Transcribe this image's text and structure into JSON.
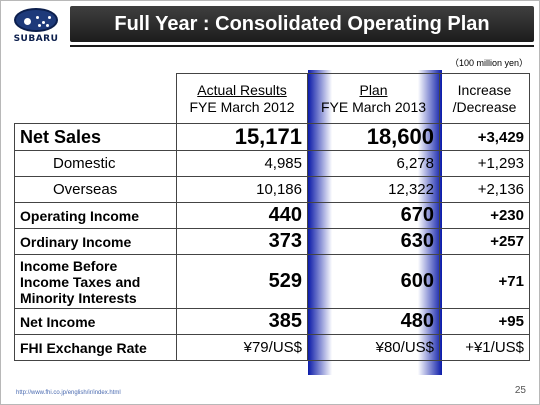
{
  "brand": {
    "logo_text": "SUBARU"
  },
  "title": "Full Year : Consolidated Operating Plan",
  "unit": "（100 million yen）",
  "headers": {
    "actual_line1": "Actual Results",
    "actual_line2": "FYE March 2012",
    "plan_line1": "Plan",
    "plan_line2": "FYE March 2013",
    "inc_line1": "Increase",
    "inc_line2": "/Decrease"
  },
  "rows": [
    {
      "label": "Net Sales",
      "actual": "15,171",
      "plan": "18,600",
      "change": "+3,429"
    },
    {
      "label": "Domestic",
      "actual": "4,985",
      "plan": "6,278",
      "change": "+1,293"
    },
    {
      "label": "Overseas",
      "actual": "10,186",
      "plan": "12,322",
      "change": "+2,136"
    },
    {
      "label": "Operating Income",
      "actual": "440",
      "plan": "670",
      "change": "+230"
    },
    {
      "label": "Ordinary Income",
      "actual": "373",
      "plan": "630",
      "change": "+257"
    },
    {
      "label_lines": [
        "Income Before",
        "Income Taxes and",
        "Minority Interests"
      ],
      "actual": "529",
      "plan": "600",
      "change": "+71"
    },
    {
      "label": "Net Income",
      "actual": "385",
      "plan": "480",
      "change": "+95"
    },
    {
      "label": "FHI Exchange Rate",
      "actual": "¥79/US$",
      "plan": "¥80/US$",
      "change": "+¥1/US$"
    }
  ],
  "footer": {
    "url": "http://www.fhi.co.jp/english/ir/index.html",
    "page": "25"
  },
  "colors": {
    "title_bar": "#2a2a2a",
    "plan_highlight": "#0a1aa8",
    "logo": "#1e3a7a"
  }
}
